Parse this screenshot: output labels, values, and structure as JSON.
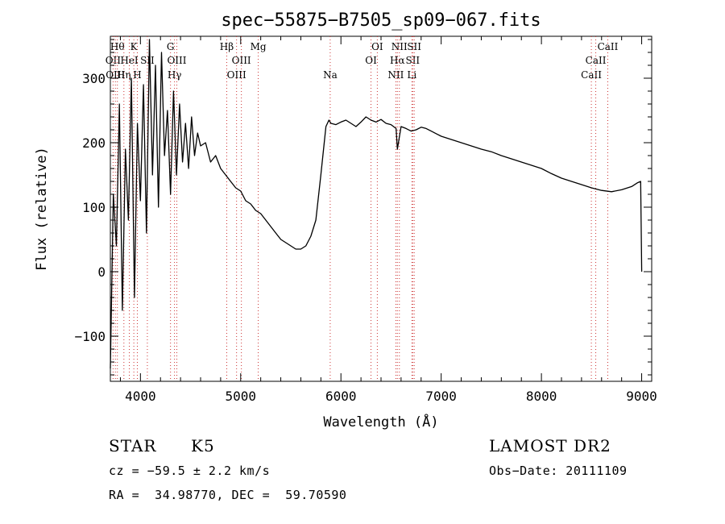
{
  "chart_data": {
    "type": "line",
    "title": "spec−55875−B7505_sp09−067.fits",
    "xlabel": "Wavelength (Å)",
    "ylabel": "Flux (relative)",
    "xlim": [
      3700,
      9100
    ],
    "ylim": [
      -170,
      365
    ],
    "x_ticks": [
      4000,
      5000,
      6000,
      7000,
      8000,
      9000
    ],
    "y_ticks": [
      -100,
      0,
      100,
      200,
      300
    ],
    "x_tick_labels": [
      "4000",
      "5000",
      "6000",
      "7000",
      "8000",
      "9000"
    ],
    "y_tick_labels": [
      "−100",
      "0",
      "100",
      "200",
      "300"
    ],
    "grid": false,
    "legend": "none",
    "line_color": "#000000",
    "marker_line_color": "#cc3333",
    "series": [
      {
        "x": [
          3700,
          3730,
          3760,
          3790,
          3820,
          3850,
          3880,
          3910,
          3940,
          3970,
          4000,
          4030,
          4060,
          4090,
          4120,
          4150,
          4180,
          4210,
          4240,
          4270,
          4300,
          4330,
          4360,
          4390,
          4420,
          4450,
          4480,
          4510,
          4540,
          4570,
          4600,
          4650,
          4700,
          4750,
          4800,
          4850,
          4900,
          4950,
          5000,
          5050,
          5100,
          5150,
          5200,
          5250,
          5300,
          5350,
          5400,
          5450,
          5500,
          5550,
          5600,
          5650,
          5700,
          5750,
          5800,
          5850,
          5880,
          5900,
          5950,
          6000,
          6050,
          6100,
          6150,
          6200,
          6250,
          6300,
          6350,
          6400,
          6450,
          6500,
          6550,
          6563,
          6600,
          6650,
          6700,
          6750,
          6800,
          6850,
          6900,
          6950,
          7000,
          7100,
          7200,
          7300,
          7400,
          7500,
          7600,
          7700,
          7800,
          7900,
          8000,
          8100,
          8200,
          8300,
          8400,
          8500,
          8600,
          8700,
          8800,
          8900,
          8960,
          8990,
          9000
        ],
        "y": [
          -150,
          120,
          40,
          260,
          -60,
          190,
          80,
          300,
          -40,
          230,
          110,
          290,
          60,
          360,
          150,
          320,
          100,
          340,
          180,
          250,
          120,
          280,
          150,
          260,
          170,
          230,
          160,
          240,
          180,
          215,
          195,
          200,
          170,
          180,
          160,
          150,
          140,
          130,
          125,
          110,
          105,
          95,
          90,
          80,
          70,
          60,
          50,
          45,
          40,
          35,
          35,
          40,
          55,
          80,
          150,
          225,
          235,
          230,
          228,
          232,
          235,
          230,
          225,
          232,
          240,
          235,
          232,
          236,
          230,
          228,
          222,
          190,
          225,
          222,
          218,
          220,
          224,
          222,
          218,
          214,
          210,
          205,
          200,
          195,
          190,
          186,
          180,
          175,
          170,
          165,
          160,
          152,
          145,
          140,
          135,
          130,
          126,
          124,
          127,
          132,
          138,
          140,
          0
        ]
      }
    ],
    "line_markers": [
      {
        "wl": 3727,
        "label": "OII",
        "row": 2
      },
      {
        "wl": 3750,
        "label": "OIII",
        "row": 3
      },
      {
        "wl": 3770,
        "label": "Hθ",
        "row": 1
      },
      {
        "wl": 3835,
        "label": "Hη",
        "row": 3
      },
      {
        "wl": 3889,
        "label": "HeI",
        "row": 2
      },
      {
        "wl": 3934,
        "label": "K",
        "row": 1
      },
      {
        "wl": 3969,
        "label": "H",
        "row": 3
      },
      {
        "wl": 4069,
        "label": "SII",
        "row": 2
      },
      {
        "wl": 4300,
        "label": "G",
        "row": 1
      },
      {
        "wl": 4340,
        "label": "Hγ",
        "row": 3
      },
      {
        "wl": 4363,
        "label": "OIII",
        "row": 2
      },
      {
        "wl": 4861,
        "label": "Hβ",
        "row": 1
      },
      {
        "wl": 4959,
        "label": "OIII",
        "row": 3
      },
      {
        "wl": 5007,
        "label": "OIII",
        "row": 2
      },
      {
        "wl": 5175,
        "label": "Mg",
        "row": 1
      },
      {
        "wl": 5893,
        "label": "Na",
        "row": 3
      },
      {
        "wl": 6300,
        "label": "OI",
        "row": 2
      },
      {
        "wl": 6363,
        "label": "OI",
        "row": 1
      },
      {
        "wl": 6548,
        "label": "NII",
        "row": 3
      },
      {
        "wl": 6563,
        "label": "Hα",
        "row": 2
      },
      {
        "wl": 6583,
        "label": "NII",
        "row": 1
      },
      {
        "wl": 6708,
        "label": "Li",
        "row": 3
      },
      {
        "wl": 6716,
        "label": "SII",
        "row": 2
      },
      {
        "wl": 6731,
        "label": "SII",
        "row": 1
      },
      {
        "wl": 8498,
        "label": "CaII",
        "row": 3
      },
      {
        "wl": 8542,
        "label": "CaII",
        "row": 2
      },
      {
        "wl": 8662,
        "label": "CaII",
        "row": 1
      }
    ]
  },
  "info": {
    "object_class": "STAR",
    "subclass": "K5",
    "survey": "LAMOST DR2",
    "cz": "cz = −59.5 ± 2.2 km/s",
    "obs_date": "Obs−Date: 20111109",
    "coords": "RA =  34.98770, DEC =  59.70590"
  }
}
